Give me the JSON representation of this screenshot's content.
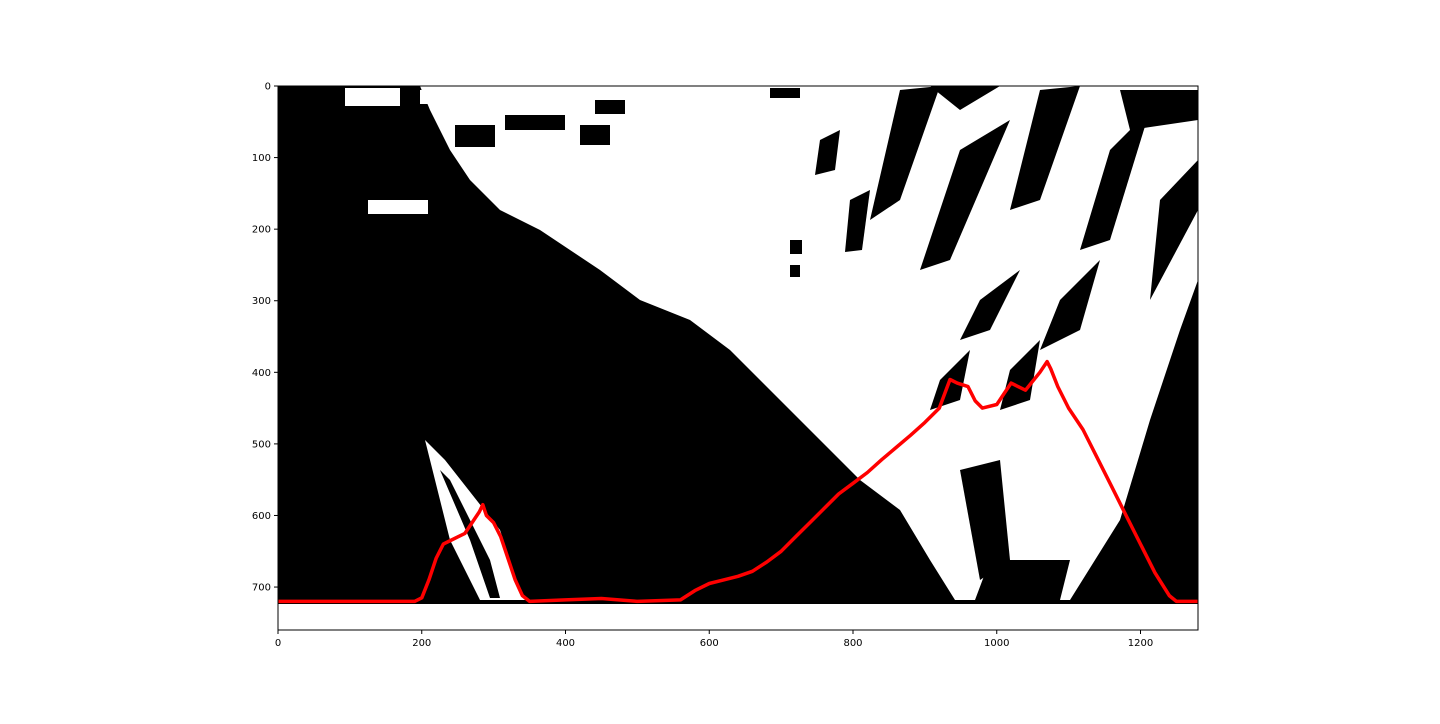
{
  "chart_data": {
    "type": "line",
    "title": "",
    "xlabel": "",
    "ylabel": "",
    "xlim": [
      0,
      1280
    ],
    "ylim": [
      760,
      0
    ],
    "y_inverted": true,
    "grid": false,
    "background_image": "binary thresholded road image (black/white) shown with imshow",
    "x_ticks": [
      {
        "value": 0,
        "label": "0"
      },
      {
        "value": 200,
        "label": "200"
      },
      {
        "value": 400,
        "label": "400"
      },
      {
        "value": 600,
        "label": "600"
      },
      {
        "value": 800,
        "label": "800"
      },
      {
        "value": 1000,
        "label": "1000"
      },
      {
        "value": 1200,
        "label": "1200"
      }
    ],
    "y_ticks": [
      {
        "value": 0,
        "label": "0"
      },
      {
        "value": 100,
        "label": "100"
      },
      {
        "value": 200,
        "label": "200"
      },
      {
        "value": 300,
        "label": "300"
      },
      {
        "value": 400,
        "label": "400"
      },
      {
        "value": 500,
        "label": "500"
      },
      {
        "value": 600,
        "label": "600"
      },
      {
        "value": 700,
        "label": "700"
      }
    ],
    "series": [
      {
        "color": "#ff0000",
        "x": [
          0,
          190,
          200,
          210,
          220,
          230,
          240,
          250,
          260,
          270,
          280,
          285,
          290,
          300,
          310,
          320,
          330,
          340,
          350,
          400,
          450,
          500,
          560,
          580,
          600,
          620,
          640,
          660,
          680,
          700,
          720,
          740,
          760,
          780,
          800,
          820,
          840,
          860,
          880,
          900,
          920,
          935,
          945,
          960,
          970,
          980,
          1000,
          1010,
          1020,
          1040,
          1060,
          1070,
          1075,
          1085,
          1100,
          1120,
          1140,
          1160,
          1180,
          1200,
          1220,
          1240,
          1250,
          1280
        ],
        "y": [
          720,
          720,
          715,
          690,
          660,
          640,
          635,
          630,
          625,
          610,
          595,
          585,
          600,
          610,
          630,
          660,
          690,
          712,
          720,
          718,
          716,
          720,
          718,
          705,
          695,
          690,
          685,
          678,
          665,
          650,
          630,
          610,
          590,
          570,
          555,
          540,
          522,
          505,
          488,
          470,
          450,
          410,
          415,
          420,
          440,
          450,
          445,
          430,
          415,
          425,
          400,
          385,
          395,
          420,
          450,
          480,
          520,
          560,
          600,
          640,
          680,
          712,
          720,
          720
        ]
      }
    ]
  }
}
